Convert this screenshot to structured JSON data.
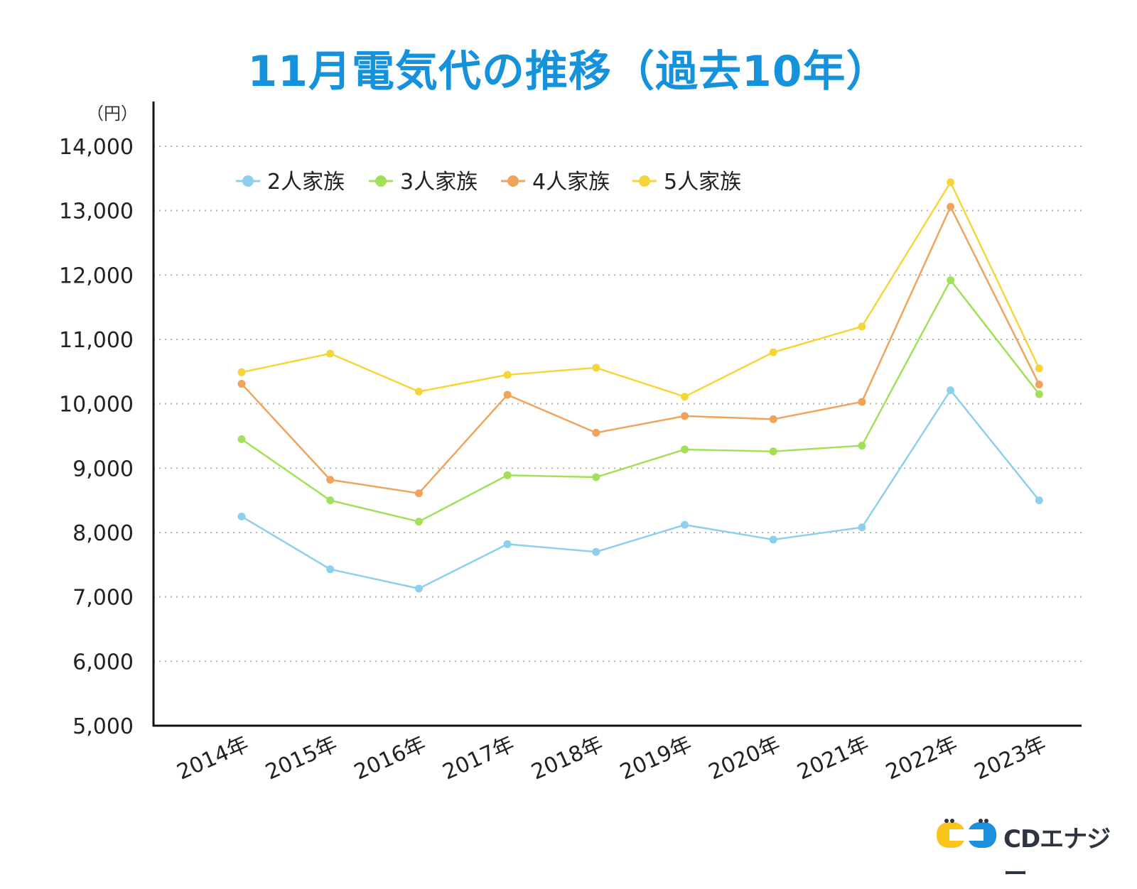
{
  "chart_data": {
    "type": "line",
    "title": "11月電気代の推移（過去10年）",
    "ylabel": "（円）",
    "xlabel": "",
    "ylim": [
      5000,
      14000
    ],
    "yticks": [
      "5,000",
      "6,000",
      "7,000",
      "8,000",
      "9,000",
      "10,000",
      "11,000",
      "12,000",
      "13,000",
      "14,000"
    ],
    "categories": [
      "2014年",
      "2015年",
      "2016年",
      "2017年",
      "2018年",
      "2019年",
      "2020年",
      "2021年",
      "2022年",
      "2023年"
    ],
    "grid": "dotted-horizontal",
    "legend_position": "top-left",
    "series": [
      {
        "name": "2人家族",
        "color": "#8ecfee",
        "values": [
          8250,
          7430,
          7130,
          7820,
          7700,
          8120,
          7890,
          8080,
          10210,
          8500
        ]
      },
      {
        "name": "3人家族",
        "color": "#a3e05a",
        "values": [
          9450,
          8500,
          8170,
          8890,
          8860,
          9290,
          9260,
          9350,
          11920,
          10150
        ]
      },
      {
        "name": "4人家族",
        "color": "#f0a35a",
        "values": [
          10310,
          8820,
          8610,
          10140,
          9550,
          9810,
          9760,
          10030,
          13060,
          10300
        ]
      },
      {
        "name": "5人家族",
        "color": "#f5d63a",
        "values": [
          10490,
          10780,
          10190,
          10450,
          10560,
          10110,
          10800,
          11200,
          13440,
          10550
        ]
      }
    ]
  },
  "logo": {
    "text": "CDエナジー",
    "yellow": "#f9c51d",
    "blue": "#1e8fdc"
  }
}
